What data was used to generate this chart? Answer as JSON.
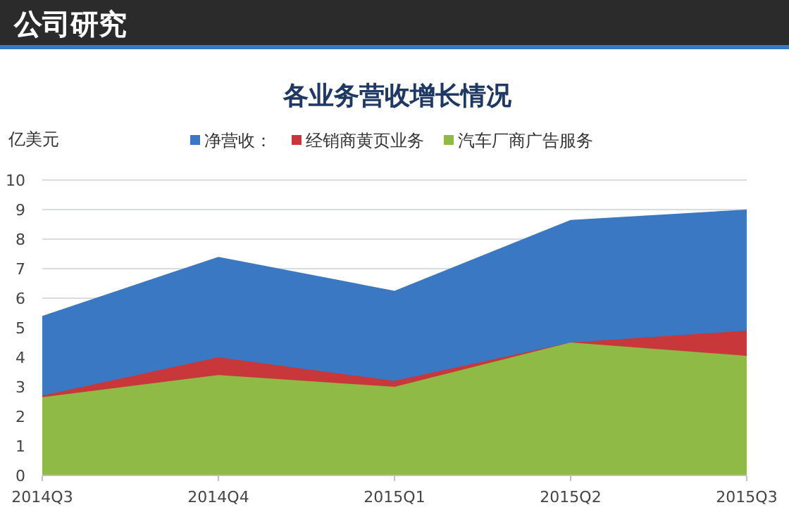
{
  "chart_data": {
    "type": "area",
    "title": "各业务营收增长情况",
    "ylabel": "亿美元",
    "annotations": [
      "公司研究"
    ],
    "categories": [
      "2014Q3",
      "2014Q4",
      "2015Q1",
      "2015Q2",
      "2015Q3"
    ],
    "series": [
      {
        "name": "净营收：",
        "color": "#3a78c3",
        "values": [
          5.4,
          7.4,
          6.25,
          8.65,
          9.0
        ]
      },
      {
        "name": "经销商黄页业务",
        "color": "#c8383a",
        "values": [
          2.7,
          4.0,
          3.2,
          4.5,
          4.9
        ]
      },
      {
        "name": "汽车厂商广告服务",
        "color": "#8fba45",
        "values": [
          2.65,
          3.4,
          3.0,
          4.5,
          4.05
        ]
      }
    ],
    "ylim": [
      0,
      10
    ],
    "yticks": [
      0,
      1,
      2,
      3,
      4,
      5,
      6,
      7,
      8,
      9,
      10
    ],
    "grid": "y",
    "legend": "top"
  }
}
